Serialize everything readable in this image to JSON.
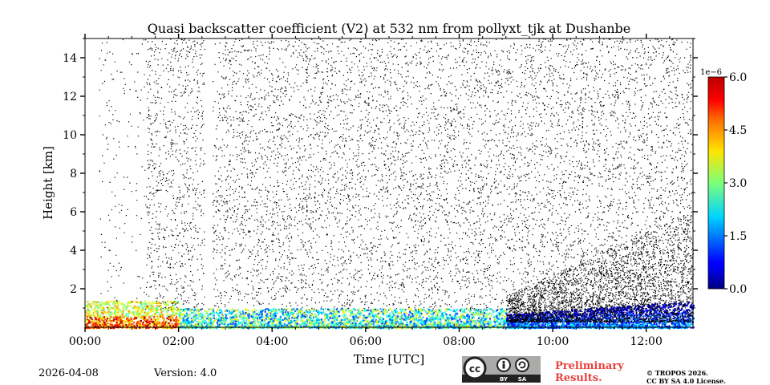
{
  "chart_data": {
    "type": "heatmap",
    "title": "Quasi backscatter coefficient (V2) at 532 nm from pollyxt_tjk at Dushanbe",
    "xlabel": "Time [UTC]",
    "ylabel": "Height [km]",
    "xlim_hours": [
      0,
      13
    ],
    "ylim_km": [
      0,
      15
    ],
    "x_ticks": [
      {
        "value": 0,
        "label": "00:00"
      },
      {
        "value": 2,
        "label": "02:00"
      },
      {
        "value": 4,
        "label": "04:00"
      },
      {
        "value": 6,
        "label": "06:00"
      },
      {
        "value": 8,
        "label": "08:00"
      },
      {
        "value": 10,
        "label": "10:00"
      },
      {
        "value": 12,
        "label": "12:00"
      }
    ],
    "y_ticks": [
      {
        "value": 2,
        "label": "2"
      },
      {
        "value": 4,
        "label": "4"
      },
      {
        "value": 6,
        "label": "6"
      },
      {
        "value": 8,
        "label": "8"
      },
      {
        "value": 10,
        "label": "10"
      },
      {
        "value": 12,
        "label": "12"
      },
      {
        "value": 14,
        "label": "14"
      }
    ],
    "colorbar": {
      "multiplier": "1e−6",
      "range": [
        0,
        6.0
      ],
      "ticks": [
        {
          "value": 0,
          "label": "0.0"
        },
        {
          "value": 1.5,
          "label": "1.5"
        },
        {
          "value": 3.0,
          "label": "3.0"
        },
        {
          "value": 4.5,
          "label": "4.5"
        },
        {
          "value": 6.0,
          "label": "6.0"
        }
      ],
      "colormap": "jet"
    },
    "regions": [
      {
        "name": "near-surface aerosol 00-02 UTC",
        "t_start": 0.0,
        "t_end": 2.0,
        "h_top_km": 1.4,
        "value_range": [
          3.5,
          6.0
        ]
      },
      {
        "name": "near-surface aerosol 02-09 UTC",
        "t_start": 2.0,
        "t_end": 9.0,
        "h_top_km": 1.0,
        "value_range": [
          1.0,
          4.0
        ]
      },
      {
        "name": "growing boundary layer 09-13 UTC",
        "t_start": 9.0,
        "t_end": 13.0,
        "h_top_km": 1.4,
        "value_range": [
          0.2,
          2.5
        ]
      },
      {
        "name": "noise above boundary layer",
        "t_start": 0.3,
        "t_end": 13.0,
        "h_top_km": 15,
        "value_range": [
          0,
          0
        ]
      }
    ]
  },
  "footer": {
    "date": "2026-04-08",
    "version": "Version: 4.0",
    "preliminary_line1": "Preliminary",
    "preliminary_line2": "Results.",
    "copyright_line1": "© TROPOS 2026.",
    "copyright_line2": "CC BY SA 4.0 License.",
    "license_badge": {
      "by": "BY",
      "sa": "SA"
    }
  },
  "colors": {
    "preliminary": "#e8433f",
    "badge_bg": "#a9aba8",
    "badge_dark": "#222222"
  }
}
